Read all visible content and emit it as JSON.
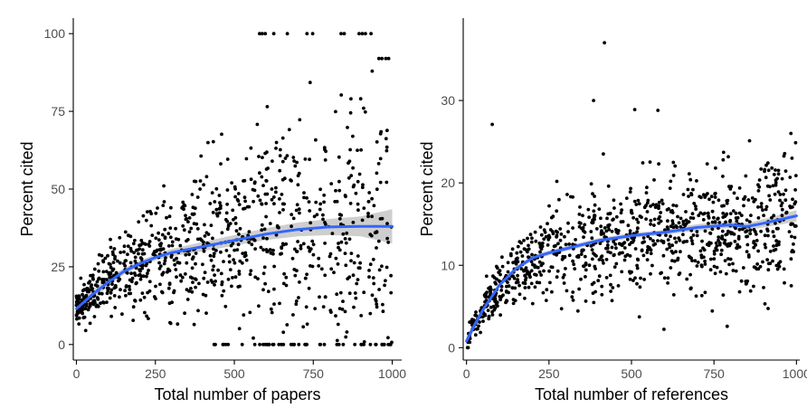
{
  "colors": {
    "points": "#000000",
    "smooth_line": "#3366FF",
    "confidence_band": "#bdbdbd",
    "axis": "#000000",
    "tick_label": "#4d4d4d"
  },
  "chart_data": [
    {
      "type": "scatter",
      "title": "",
      "xlabel": "Total number of papers",
      "ylabel": "Percent cited",
      "xlim": [
        -10,
        1030
      ],
      "ylim": [
        -5,
        105
      ],
      "xticks": [
        0,
        250,
        500,
        750,
        1000
      ],
      "yticks": [
        0,
        25,
        50,
        75,
        100
      ],
      "xtick_labels": [
        "0",
        "250",
        "500",
        "750",
        "1000"
      ],
      "ytick_labels": [
        "0",
        "25",
        "50",
        "75",
        "100"
      ],
      "grid": false,
      "point_count": 1000,
      "smooth_fit": {
        "method": "loess",
        "x": [
          0,
          50,
          100,
          150,
          200,
          250,
          300,
          400,
          500,
          600,
          700,
          800,
          900,
          1000
        ],
        "y": [
          11.5,
          16,
          20,
          23.5,
          26,
          28,
          29.5,
          31.5,
          33.5,
          35.5,
          37,
          37.8,
          38,
          38
        ],
        "ci_lower": [
          8.5,
          14.5,
          18.5,
          22.5,
          25,
          27,
          28.3,
          30,
          31.8,
          33.6,
          34.8,
          35.2,
          34.8,
          32.5
        ],
        "ci_upper": [
          14.5,
          17.5,
          21.5,
          24.5,
          27,
          29,
          30.7,
          33,
          35.2,
          37.4,
          39.2,
          40.4,
          41.2,
          43.5
        ]
      },
      "features": {
        "points_at_100": [
          580,
          588,
          598,
          625,
          668,
          730,
          748,
          838,
          848,
          895,
          905,
          915,
          933
        ],
        "max_x_shown": 1000
      }
    },
    {
      "type": "scatter",
      "title": "",
      "xlabel": "Total number of references",
      "ylabel": "Percent cited",
      "xlim": [
        -10,
        1010
      ],
      "ylim": [
        -1.5,
        40
      ],
      "xticks": [
        0,
        250,
        500,
        750,
        1000
      ],
      "yticks": [
        0,
        10,
        20,
        30
      ],
      "xtick_labels": [
        "0",
        "250",
        "500",
        "750",
        "1000"
      ],
      "ytick_labels": [
        "0",
        "10",
        "20",
        "30"
      ],
      "grid": false,
      "point_count": 1000,
      "smooth_fit": {
        "method": "loess",
        "x": [
          0,
          25,
          50,
          100,
          150,
          200,
          250,
          300,
          400,
          500,
          600,
          700,
          800,
          850,
          900,
          1000
        ],
        "y": [
          0.8,
          2.8,
          4.6,
          7.6,
          9.6,
          10.9,
          11.5,
          12,
          13,
          13.6,
          14,
          14.6,
          14.9,
          14.7,
          15.1,
          16
        ],
        "ci_lower": [
          0.2,
          2.3,
          4.2,
          7.3,
          9.3,
          10.6,
          11.2,
          11.7,
          12.7,
          13.3,
          13.7,
          14.2,
          14.5,
          14.3,
          14.6,
          15.3
        ],
        "ci_upper": [
          1.4,
          3.3,
          5,
          7.9,
          9.9,
          11.2,
          11.8,
          12.3,
          13.3,
          13.9,
          14.3,
          15,
          15.3,
          15.1,
          15.6,
          16.7
        ]
      },
      "features": {
        "outliers": [
          {
            "x": 78,
            "y": 27.1
          },
          {
            "x": 385,
            "y": 30
          },
          {
            "x": 418,
            "y": 37
          },
          {
            "x": 510,
            "y": 28.9
          },
          {
            "x": 580,
            "y": 28.8
          },
          {
            "x": 790,
            "y": 2.6
          }
        ],
        "max_x_shown": 1000
      }
    }
  ]
}
